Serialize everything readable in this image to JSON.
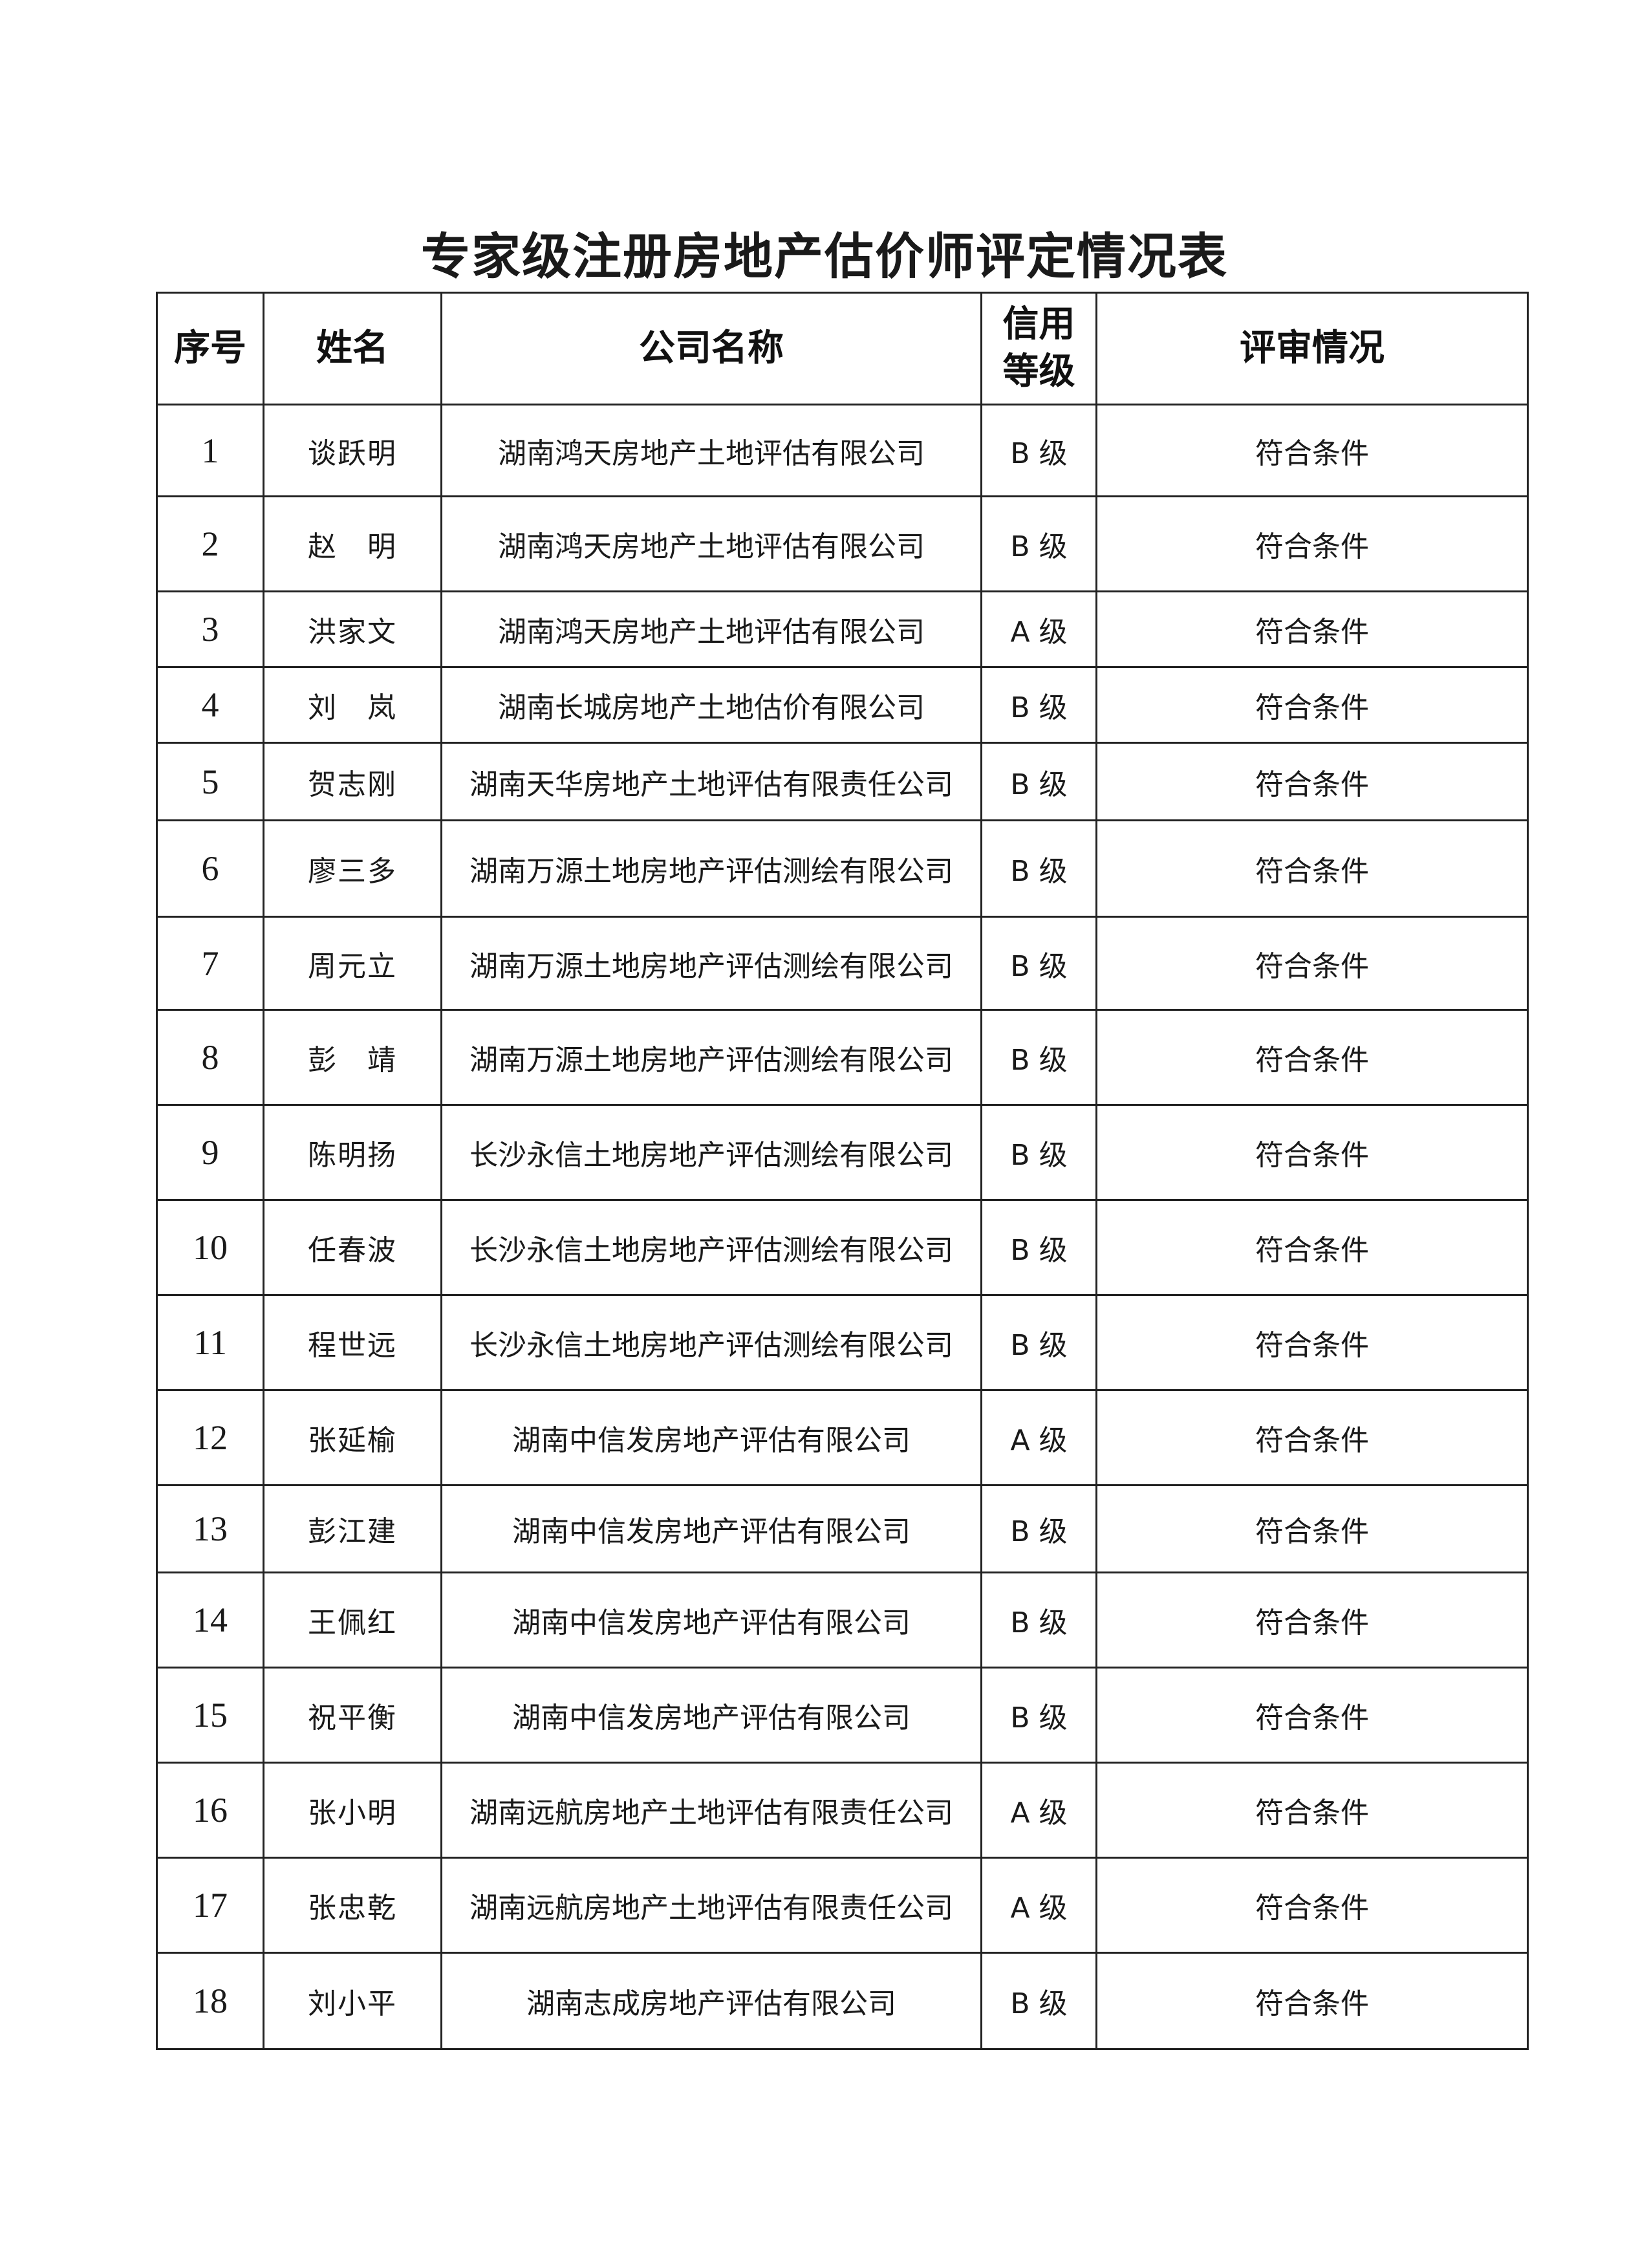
{
  "title": "专家级注册房地产估价师评定情况表",
  "table": {
    "headers": [
      "序号",
      "姓名",
      "公司名称",
      "信用等级",
      "评审情况"
    ],
    "header_credit_lines": [
      "信用",
      "等级"
    ],
    "rows": [
      {
        "no": "1",
        "name": "谈跃明",
        "company": "湖南鸿天房地产土地评估有限公司",
        "grade": "B 级",
        "result": "符合条件"
      },
      {
        "no": "2",
        "name": "赵　明",
        "company": "湖南鸿天房地产土地评估有限公司",
        "grade": "B 级",
        "result": "符合条件"
      },
      {
        "no": "3",
        "name": "洪家文",
        "company": "湖南鸿天房地产土地评估有限公司",
        "grade": "A 级",
        "result": "符合条件"
      },
      {
        "no": "4",
        "name": "刘　岚",
        "company": "湖南长城房地产土地估价有限公司",
        "grade": "B 级",
        "result": "符合条件"
      },
      {
        "no": "5",
        "name": "贺志刚",
        "company": "湖南天华房地产土地评估有限责任公司",
        "grade": "B 级",
        "result": "符合条件"
      },
      {
        "no": "6",
        "name": "廖三多",
        "company": "湖南万源土地房地产评估测绘有限公司",
        "grade": "B 级",
        "result": "符合条件"
      },
      {
        "no": "7",
        "name": "周元立",
        "company": "湖南万源土地房地产评估测绘有限公司",
        "grade": "B 级",
        "result": "符合条件"
      },
      {
        "no": "8",
        "name": "彭　靖",
        "company": "湖南万源土地房地产评估测绘有限公司",
        "grade": "B 级",
        "result": "符合条件"
      },
      {
        "no": "9",
        "name": "陈明扬",
        "company": "长沙永信土地房地产评估测绘有限公司",
        "grade": "B 级",
        "result": "符合条件"
      },
      {
        "no": "10",
        "name": "任春波",
        "company": "长沙永信土地房地产评估测绘有限公司",
        "grade": "B 级",
        "result": "符合条件"
      },
      {
        "no": "11",
        "name": "程世远",
        "company": "长沙永信土地房地产评估测绘有限公司",
        "grade": "B 级",
        "result": "符合条件"
      },
      {
        "no": "12",
        "name": "张延榆",
        "company": "湖南中信发房地产评估有限公司",
        "grade": "A 级",
        "result": "符合条件"
      },
      {
        "no": "13",
        "name": "彭江建",
        "company": "湖南中信发房地产评估有限公司",
        "grade": "B 级",
        "result": "符合条件"
      },
      {
        "no": "14",
        "name": "王佩红",
        "company": "湖南中信发房地产评估有限公司",
        "grade": "B 级",
        "result": "符合条件"
      },
      {
        "no": "15",
        "name": "祝平衡",
        "company": "湖南中信发房地产评估有限公司",
        "grade": "B 级",
        "result": "符合条件"
      },
      {
        "no": "16",
        "name": "张小明",
        "company": "湖南远航房地产土地评估有限责任公司",
        "grade": "A 级",
        "result": "符合条件"
      },
      {
        "no": "17",
        "name": "张忠乾",
        "company": "湖南远航房地产土地评估有限责任公司",
        "grade": "A 级",
        "result": "符合条件"
      },
      {
        "no": "18",
        "name": "刘小平",
        "company": "湖南志成房地产评估有限公司",
        "grade": "B 级",
        "result": "符合条件"
      }
    ]
  }
}
